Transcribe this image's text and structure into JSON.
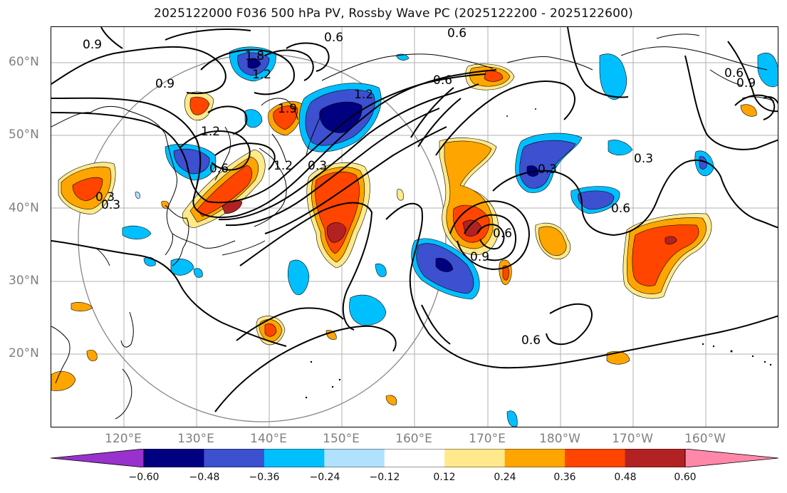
{
  "title": "2025122000 F036 500 hPa PV, Rossby Wave PC (2025122200 - 2025122600)",
  "lat_labels": [
    "60°N",
    "50°N",
    "40°N",
    "30°N",
    "20°N"
  ],
  "lon_labels": [
    "120°E",
    "130°E",
    "140°E",
    "150°E",
    "160°E",
    "170°E",
    "180°W",
    "170°W",
    "160°W"
  ],
  "contour_labels": [
    "0.9",
    "0.6",
    "0.6",
    "1.8",
    "1.2",
    "0.9",
    "1.2",
    "1.9",
    "1.2",
    "0.6",
    "0.6",
    "0.3",
    "1.2",
    "0.3",
    "0.6",
    "0.6",
    "0.9",
    "0.6",
    "0.3",
    "0.6",
    "0.3",
    "0.9",
    "0.3"
  ],
  "colorbar": {
    "ticks": [
      "−0.60",
      "−0.48",
      "−0.36",
      "−0.24",
      "−0.12",
      "0.12",
      "0.24",
      "0.36",
      "0.48",
      "0.60"
    ],
    "colors": [
      "#9932cc",
      "#000080",
      "#3c50d0",
      "#00bfff",
      "#b0e2ff",
      "#ffffff",
      "#ffe98a",
      "#ffa500",
      "#ff4500",
      "#b22222",
      "#ff88aa"
    ]
  }
}
